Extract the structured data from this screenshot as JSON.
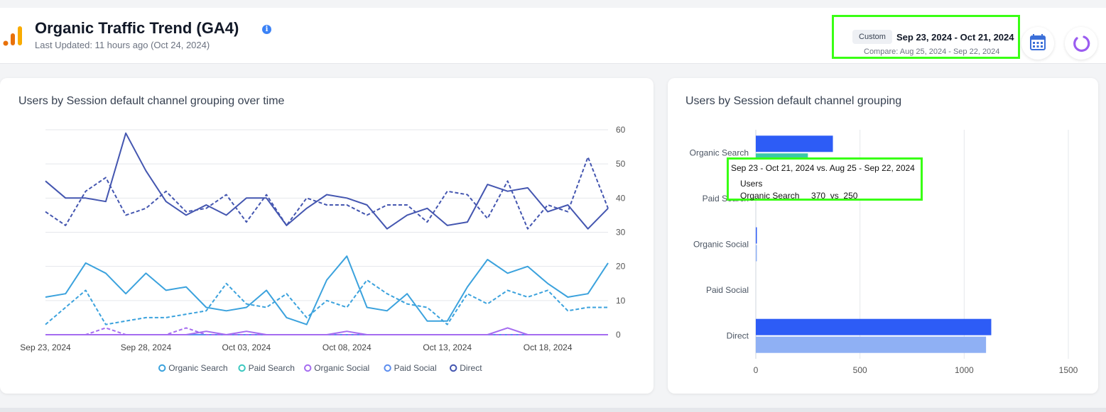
{
  "header": {
    "title": "Organic Traffic Trend (GA4)",
    "last_updated": "Last Updated: 11 hours ago (Oct 24, 2024)",
    "info_icon": "info-icon",
    "logo_icon": "analytics-logo-icon"
  },
  "date_range": {
    "badge": "Custom",
    "range": "Sep 23, 2024 - Oct 21, 2024",
    "compare": "Compare: Aug 25, 2024 - Sep 22, 2024"
  },
  "buttons": {
    "calendar_icon": "calendar-icon",
    "refresh_icon": "refresh-icon"
  },
  "colors": {
    "organic_search": "#3ba2dd",
    "paid_search": "#3cc8c0",
    "organic_social": "#a56cf0",
    "paid_social": "#5b8def",
    "direct": "#4456b0",
    "bar_current": "#2d5cf6",
    "bar_compare": "#8fb0f4",
    "bar_paid_compare": "#3cc8a8",
    "highlight": "#39ff14"
  },
  "chart_data": [
    {
      "type": "line",
      "title": "Users by Session default channel grouping over time",
      "x_tick_labels": [
        "Sep 23, 2024",
        "Sep 28, 2024",
        "Oct 03, 2024",
        "Oct 08, 2024",
        "Oct 13, 2024",
        "Oct 18, 2024"
      ],
      "x_tick_indices": [
        0,
        5,
        10,
        15,
        20,
        25
      ],
      "ylim": [
        0,
        60
      ],
      "y_ticks": [
        0,
        10,
        20,
        30,
        40,
        50,
        60
      ],
      "y_axis_side": "right",
      "grid": true,
      "legend": "bottom",
      "point_count": 29,
      "series": [
        {
          "name": "Organic Search",
          "period": "current",
          "values": [
            11,
            12,
            21,
            18,
            12,
            18,
            13,
            14,
            8,
            7,
            8,
            13,
            5,
            3,
            16,
            23,
            8,
            7,
            12,
            4,
            4,
            14,
            22,
            18,
            20,
            15,
            11,
            12,
            21
          ]
        },
        {
          "name": "Organic Search",
          "period": "compare",
          "values": [
            3,
            8,
            13,
            3,
            4,
            5,
            5,
            6,
            7,
            15,
            9,
            8,
            12,
            5,
            10,
            8,
            16,
            12,
            9,
            8,
            3,
            12,
            9,
            13,
            11,
            13,
            7,
            8,
            8
          ]
        },
        {
          "name": "Paid Search",
          "period": "current",
          "values": [
            0,
            0,
            0,
            0,
            0,
            0,
            0,
            0,
            0,
            0,
            0,
            0,
            0,
            0,
            0,
            0,
            0,
            0,
            0,
            0,
            0,
            0,
            0,
            0,
            0,
            0,
            0,
            0,
            0
          ]
        },
        {
          "name": "Organic Social",
          "period": "current",
          "values": [
            0,
            0,
            0,
            0,
            0,
            0,
            0,
            0,
            1,
            0,
            1,
            0,
            0,
            0,
            0,
            1,
            0,
            0,
            0,
            0,
            0,
            0,
            0,
            2,
            0,
            0,
            0,
            0,
            0
          ]
        },
        {
          "name": "Organic Social",
          "period": "compare",
          "values": [
            0,
            0,
            0,
            2,
            0,
            0,
            0,
            2,
            0,
            0,
            0,
            0,
            0,
            0,
            0,
            0,
            0,
            0,
            0,
            0,
            0,
            0,
            0,
            0,
            0,
            0,
            0,
            0,
            0
          ]
        },
        {
          "name": "Paid Social",
          "period": "current",
          "values": [
            0,
            0,
            0,
            0,
            0,
            0,
            0,
            0,
            0,
            0,
            0,
            0,
            0,
            0,
            0,
            0,
            0,
            0,
            0,
            0,
            0,
            0,
            0,
            0,
            0,
            0,
            0,
            0,
            0
          ]
        },
        {
          "name": "Direct",
          "period": "current",
          "values": [
            45,
            40,
            40,
            39,
            59,
            48,
            39,
            35,
            38,
            35,
            40,
            40,
            32,
            37,
            41,
            40,
            38,
            31,
            35,
            37,
            32,
            33,
            44,
            42,
            43,
            36,
            38,
            31,
            37
          ]
        },
        {
          "name": "Direct",
          "period": "compare",
          "values": [
            36,
            32,
            42,
            46,
            35,
            37,
            42,
            36,
            37,
            41,
            33,
            41,
            32,
            40,
            38,
            38,
            35,
            38,
            38,
            33,
            42,
            41,
            34,
            45,
            31,
            38,
            36,
            52,
            37
          ]
        }
      ],
      "legend_items": [
        "Organic Search",
        "Paid Search",
        "Organic Social",
        "Paid Social",
        "Direct"
      ]
    },
    {
      "type": "bar",
      "orientation": "horizontal",
      "title": "Users by Session default channel grouping",
      "categories": [
        "Organic Search",
        "Paid Search",
        "Organic Social",
        "Paid Social",
        "Direct"
      ],
      "series": [
        {
          "period": "current",
          "values": [
            370,
            0,
            5,
            0,
            1130
          ]
        },
        {
          "period": "compare",
          "values": [
            250,
            0,
            3,
            0,
            1105
          ]
        }
      ],
      "xlim": [
        0,
        1500
      ],
      "x_ticks": [
        0,
        500,
        1000,
        1500
      ],
      "grid": true
    }
  ],
  "tooltip": {
    "title": "Sep 23 - Oct 21, 2024 vs. Aug 25 - Sep 22, 2024",
    "metric": "Users",
    "row": "Organic Search     370  vs  250"
  }
}
